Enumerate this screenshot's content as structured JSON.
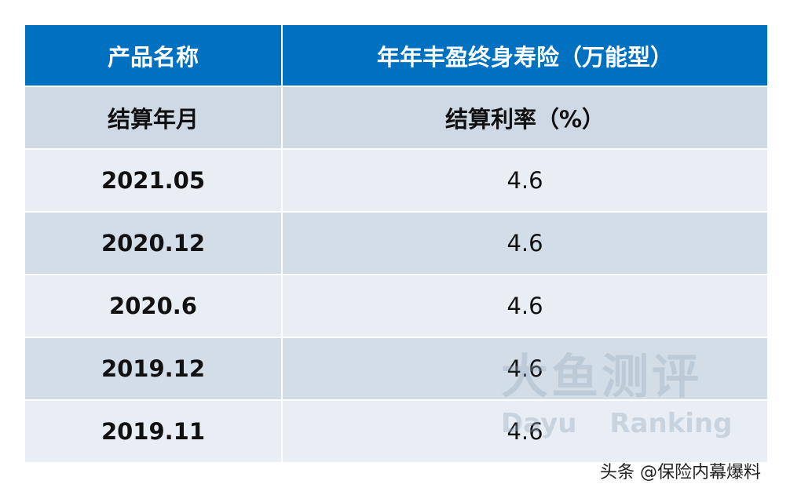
{
  "table": {
    "header": [
      "产品名称",
      "年年丰盈终身寿险（万能型）"
    ],
    "subheader": [
      "结算年月",
      "结算利率（%）"
    ],
    "rows": [
      [
        "2021.05",
        "4.6"
      ],
      [
        "2020.12",
        "4.6"
      ],
      [
        "2020.6",
        "4.6"
      ],
      [
        "2019.12",
        "4.6"
      ],
      [
        "2019.11",
        "4.6"
      ]
    ]
  },
  "watermark": {
    "title": "大鱼测评",
    "subtitle": "Dayu Ranking"
  },
  "footer": {
    "credit": "头条 @保险内幕爆料"
  }
}
